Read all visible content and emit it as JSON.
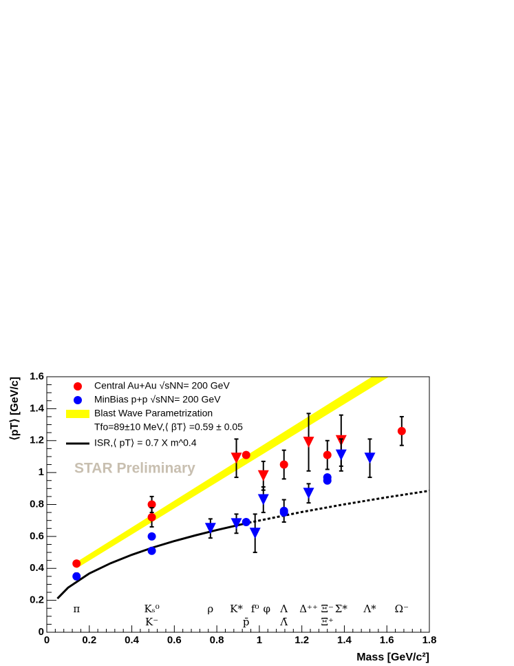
{
  "chart_data": {
    "type": "scatter",
    "xlabel": "Mass [GeV/c²]",
    "ylabel": "⟨pT⟩ [GeV/c]",
    "watermark": "STAR Preliminary",
    "xlim": [
      0,
      1.8
    ],
    "xticks": [
      0,
      0.2,
      0.4,
      0.6,
      0.8,
      1,
      1.2,
      1.4,
      1.6,
      1.8
    ],
    "ylim": [
      0,
      1.6
    ],
    "yticks": [
      0,
      0.2,
      0.4,
      0.6,
      0.8,
      1,
      1.2,
      1.4,
      1.6
    ],
    "series": [
      {
        "name": "Central Au+Au √sNN= 200 GeV",
        "color": "#ff0000",
        "marker": "circle",
        "x": [
          0.14,
          0.494,
          0.494,
          0.938,
          1.116,
          1.32,
          1.67
        ],
        "values": [
          0.43,
          0.8,
          0.72,
          1.11,
          1.05,
          1.11,
          1.26
        ],
        "errors": [
          null,
          0.05,
          0.06,
          null,
          0.09,
          0.09,
          0.09
        ]
      },
      {
        "name": "MinBias p+p √sNN= 200 GeV",
        "color": "#0000ff",
        "marker": "circle",
        "x": [
          0.14,
          0.494,
          0.494,
          0.938,
          1.116,
          1.116,
          1.32,
          1.32
        ],
        "values": [
          0.35,
          0.6,
          0.51,
          0.69,
          0.76,
          0.75,
          0.97,
          0.95
        ],
        "errors": [
          0.02,
          null,
          null,
          null,
          0.07,
          null,
          null,
          null
        ]
      },
      {
        "color": "#ff0000",
        "marker": "triangle",
        "x": [
          0.892,
          1.019,
          1.232,
          1.385
        ],
        "values": [
          1.09,
          0.98,
          1.19,
          1.2
        ],
        "errors": [
          0.12,
          0.09,
          0.18,
          0.16
        ]
      },
      {
        "color": "#0000ff",
        "marker": "triangle",
        "x": [
          0.77,
          0.892,
          0.98,
          1.019,
          1.232,
          1.385,
          1.52
        ],
        "values": [
          0.65,
          0.68,
          0.62,
          0.83,
          0.87,
          1.11,
          1.09
        ],
        "errors": [
          0.06,
          0.06,
          0.12,
          0.08,
          0.06,
          0.1,
          0.12
        ]
      }
    ],
    "band": {
      "name": "Blast Wave Parametrization",
      "description": "Tfo=89±10 MeV,⟨ βT⟩ =0.59 ± 0.05",
      "color": "#ffff00",
      "upper_x": [
        0.14,
        1.53
      ],
      "upper": [
        0.44,
        1.6
      ],
      "lower_x": [
        0.14,
        1.61
      ],
      "lower": [
        0.4,
        1.6
      ]
    },
    "curves": [
      {
        "name": "ISR,⟨ pT⟩ = 0.7 X m^0.4",
        "color": "#000000",
        "style": "solid",
        "x": [
          0.05,
          0.1,
          0.2,
          0.3,
          0.4,
          0.5,
          0.6,
          0.7,
          0.8,
          0.95
        ],
        "values": [
          0.211,
          0.279,
          0.368,
          0.432,
          0.485,
          0.531,
          0.571,
          0.607,
          0.64,
          0.686
        ]
      },
      {
        "color": "#000000",
        "style": "dotted",
        "x": [
          0.95,
          1.2,
          1.4,
          1.6,
          1.8
        ],
        "values": [
          0.686,
          0.753,
          0.801,
          0.845,
          0.886
        ]
      }
    ],
    "particle_labels": [
      {
        "label": "π",
        "x": 0.14
      },
      {
        "label": "Kₛ⁰",
        "x": 0.494
      },
      {
        "label": "ρ",
        "x": 0.77
      },
      {
        "label": "K*",
        "x": 0.892
      },
      {
        "label": "f⁰",
        "x": 0.98
      },
      {
        "label": "φ",
        "x": 1.035
      },
      {
        "label": "Λ",
        "x": 1.116
      },
      {
        "label": "Δ⁺⁺",
        "x": 1.232
      },
      {
        "label": "Ξ⁻",
        "x": 1.32
      },
      {
        "label": "Σ*",
        "x": 1.385
      },
      {
        "label": "Λ*",
        "x": 1.52
      },
      {
        "label": "Ω⁻",
        "x": 1.67
      }
    ],
    "lower_labels": [
      {
        "label": "K⁻",
        "x": 0.494
      },
      {
        "label": "p̄",
        "x": 0.938
      },
      {
        "label": "Λ̄",
        "x": 1.116
      },
      {
        "label": "Ξ̄⁺",
        "x": 1.32
      }
    ]
  }
}
